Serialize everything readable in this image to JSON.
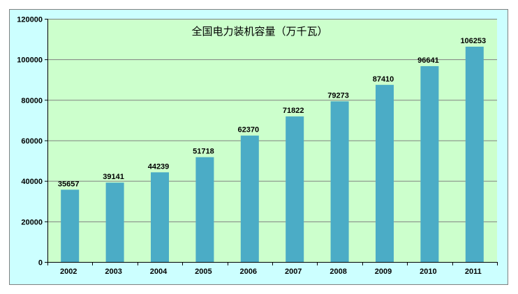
{
  "chart_data": {
    "type": "bar",
    "title": "全国电力装机容量（万千瓦）",
    "xlabel": "",
    "ylabel": "",
    "categories": [
      "2002",
      "2003",
      "2004",
      "2005",
      "2006",
      "2007",
      "2008",
      "2009",
      "2010",
      "2011"
    ],
    "values": [
      35657,
      39141,
      44239,
      51718,
      62370,
      71822,
      79273,
      87410,
      96641,
      106253
    ],
    "data_labels": [
      "35657",
      "39141",
      "44239",
      "51718",
      "62370",
      "71822",
      "79273",
      "87410",
      "96641",
      "106253"
    ],
    "ylim": [
      0,
      120000
    ],
    "yticks": [
      "0",
      "20000",
      "40000",
      "60000",
      "80000",
      "100000",
      "120000"
    ],
    "grid": true,
    "legend": "none",
    "colors": {
      "bar": "#4bacc6",
      "plot_bg": "#ccffcc",
      "chart_bg": "#ccffff",
      "grid": "#808080"
    }
  }
}
